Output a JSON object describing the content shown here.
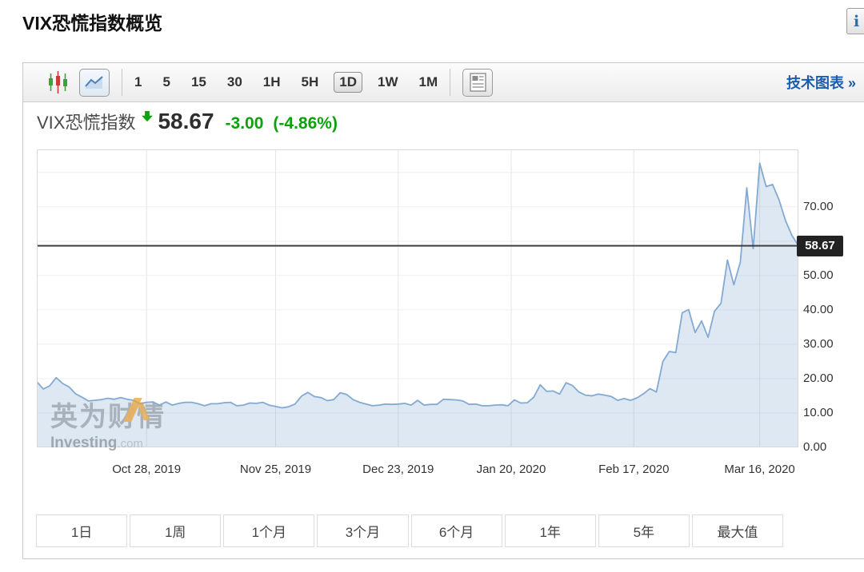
{
  "page": {
    "title": "VIX恐慌指数概览"
  },
  "header": {
    "info_icon_glyph": "i"
  },
  "toolbar": {
    "chart_types": {
      "candlestick": "candlestick-chart",
      "line": "line-chart",
      "active": "line"
    },
    "intervals": [
      "1",
      "5",
      "15",
      "30",
      "1H",
      "5H",
      "1D",
      "1W",
      "1M"
    ],
    "active_interval": "1D",
    "news_icon": "news-panel",
    "technical_link": "技术图表",
    "technical_link_arrow": "»"
  },
  "instrument": {
    "name": "VIX恐慌指数",
    "direction": "down",
    "last": "58.67",
    "change": "-3.00",
    "change_percent": "(-4.86%)",
    "change_color": "#0da10d"
  },
  "watermark": {
    "cn": "英为财情",
    "brand": "Investing",
    "tld": ".com"
  },
  "ranges": [
    "1日",
    "1周",
    "1个月",
    "3个月",
    "6个月",
    "1年",
    "5年",
    "最大值"
  ],
  "chart_data": {
    "type": "area",
    "title": "VIX恐慌指数",
    "xlabel": "",
    "ylabel": "",
    "ylim": [
      0,
      86.7
    ],
    "grid": true,
    "legend": false,
    "last_price": 58.67,
    "price_line": 58.67,
    "previous_close": 61.67,
    "line_color": "#84a9d2",
    "fill_color": "rgba(129,166,210,0.26)",
    "price_line_color": "#3f3f3f",
    "y_ticks": [
      0,
      10,
      20,
      30,
      40,
      50,
      60,
      70
    ],
    "y_grid": [
      10,
      20,
      30,
      40,
      50,
      60,
      70,
      80
    ],
    "x_ticks": [
      {
        "label": "Oct 28, 2019",
        "index": 17
      },
      {
        "label": "Nov 25, 2019",
        "index": 37
      },
      {
        "label": "Dec 23, 2019",
        "index": 56
      },
      {
        "label": "Jan 20, 2020",
        "index": 73.5
      },
      {
        "label": "Feb 17, 2020",
        "index": 92.5
      },
      {
        "label": "Mar 16, 2020",
        "index": 112
      }
    ],
    "values": [
      19.1,
      17.0,
      17.9,
      20.3,
      18.6,
      17.6,
      15.6,
      14.6,
      13.5,
      13.7,
      13.9,
      14.3,
      14.0,
      14.5,
      14.0,
      13.7,
      12.7,
      13.1,
      13.2,
      12.3,
      13.2,
      12.3,
      12.8,
      13.1,
      13.1,
      12.7,
      12.1,
      12.7,
      12.7,
      13.0,
      13.1,
      12.1,
      12.3,
      12.9,
      12.8,
      13.1,
      12.3,
      11.9,
      11.5,
      11.8,
      12.6,
      14.9,
      16.0,
      14.8,
      14.5,
      13.6,
      13.9,
      15.9,
      15.4,
      13.9,
      13.1,
      12.6,
      12.1,
      12.3,
      12.6,
      12.5,
      12.6,
      12.8,
      12.3,
      13.7,
      12.3,
      12.5,
      12.5,
      14.0,
      13.9,
      13.8,
      13.5,
      12.5,
      12.6,
      12.1,
      12.1,
      12.3,
      12.4,
      12.1,
      13.8,
      12.9,
      13.0,
      14.6,
      18.2,
      16.3,
      16.4,
      15.5,
      18.8,
      18.0,
      16.1,
      15.2,
      15.0,
      15.5,
      15.2,
      14.8,
      13.7,
      14.2,
      13.7,
      14.4,
      15.6,
      17.1,
      16.1,
      25.0,
      27.9,
      27.6,
      39.2,
      40.1,
      33.4,
      36.8,
      32.0,
      39.6,
      41.9,
      54.5,
      47.3,
      53.9,
      75.5,
      57.8,
      82.7,
      75.9,
      76.5,
      72.0,
      66.0,
      61.67,
      58.67
    ]
  }
}
